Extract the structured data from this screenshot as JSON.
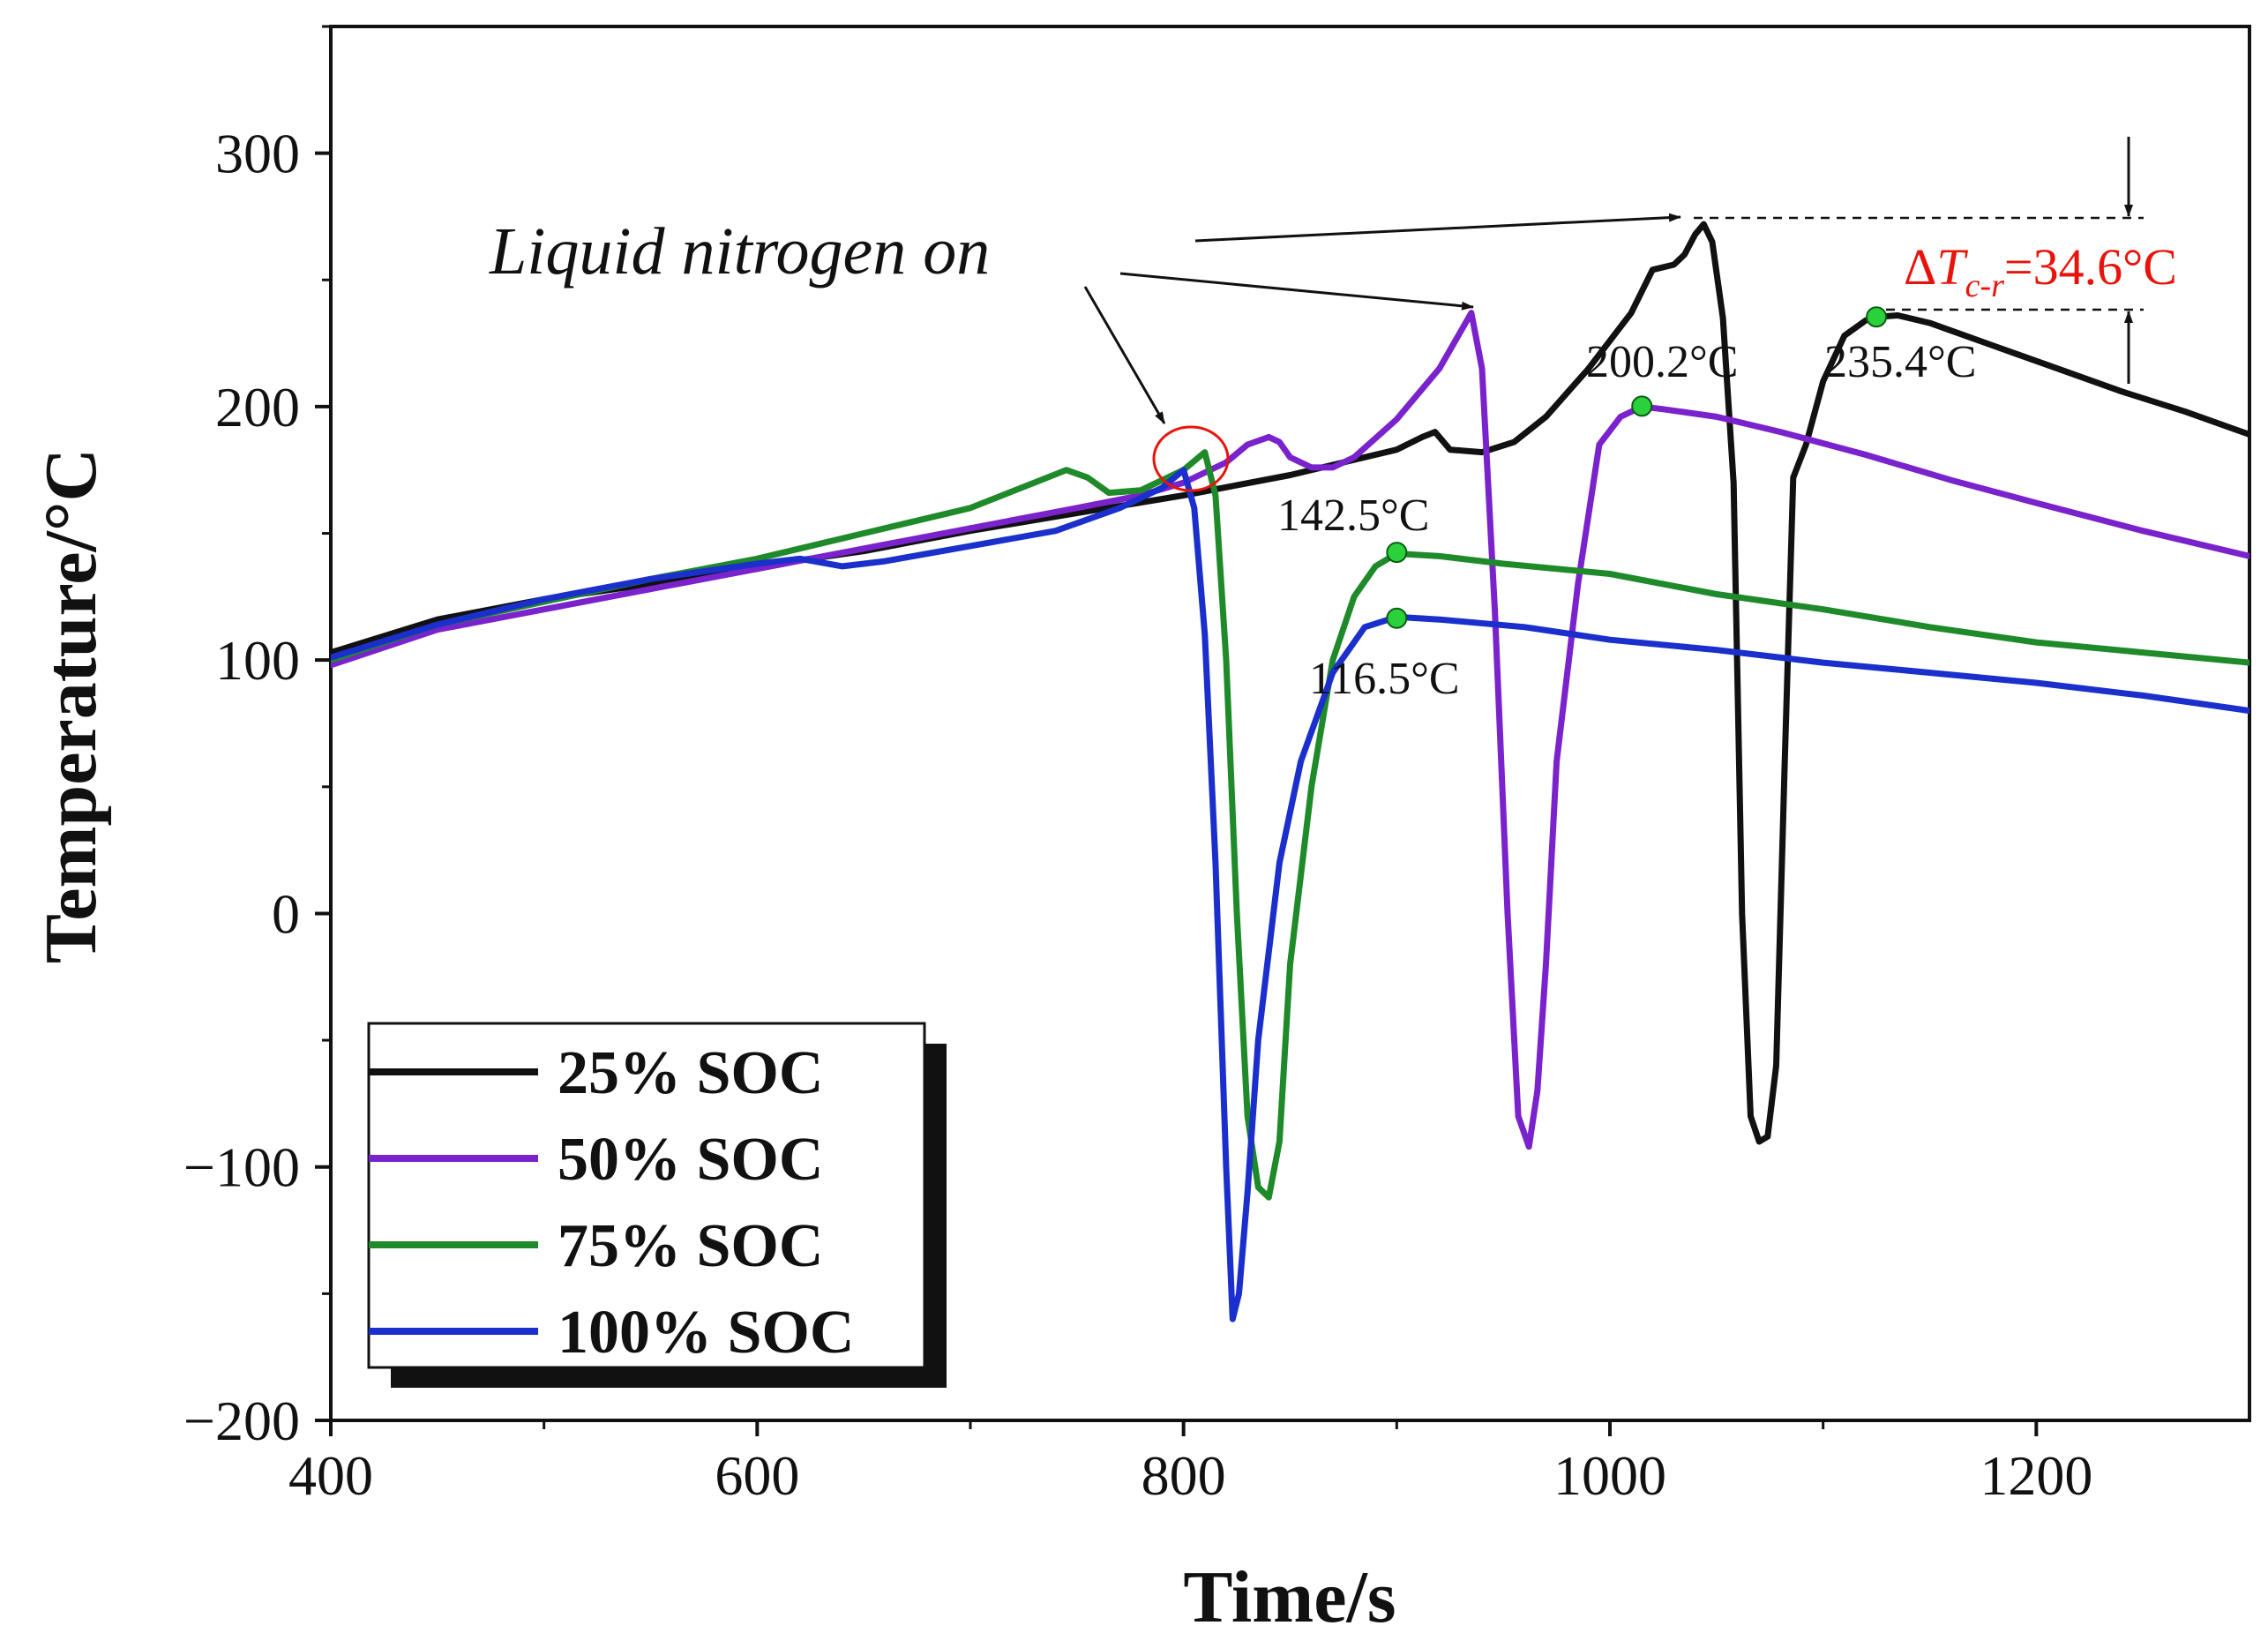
{
  "chart_data": {
    "type": "line",
    "title": "",
    "xlabel": "Time/s",
    "ylabel": "Temperature/°C",
    "xlim": [
      400,
      1300
    ],
    "ylim": [
      -200,
      350
    ],
    "xticks": [
      400,
      600,
      800,
      1000,
      1200
    ],
    "xtick_labels": [
      "400",
      "600",
      "800",
      "1000",
      "1200"
    ],
    "yticks": [
      -200,
      -100,
      0,
      100,
      200,
      300
    ],
    "ytick_labels": [
      "−200",
      "−100",
      "0",
      "100",
      "200",
      "300"
    ],
    "legend_position": "bottom-left",
    "series": [
      {
        "name": "25% SOC",
        "color": "#111111",
        "points": [
          [
            400,
            103
          ],
          [
            450,
            116
          ],
          [
            500,
            124
          ],
          [
            550,
            130
          ],
          [
            600,
            137
          ],
          [
            650,
            143
          ],
          [
            700,
            151
          ],
          [
            750,
            158
          ],
          [
            800,
            165
          ],
          [
            850,
            173
          ],
          [
            900,
            183
          ],
          [
            912,
            188
          ],
          [
            918,
            190
          ],
          [
            925,
            183
          ],
          [
            940,
            182
          ],
          [
            955,
            186
          ],
          [
            970,
            196
          ],
          [
            990,
            215
          ],
          [
            1010,
            237
          ],
          [
            1020,
            254
          ],
          [
            1030,
            256
          ],
          [
            1035,
            260
          ],
          [
            1040,
            268
          ],
          [
            1044,
            272
          ],
          [
            1048,
            265
          ],
          [
            1053,
            235
          ],
          [
            1058,
            170
          ],
          [
            1062,
            0
          ],
          [
            1066,
            -80
          ],
          [
            1070,
            -90
          ],
          [
            1074,
            -88
          ],
          [
            1078,
            -60
          ],
          [
            1082,
            60
          ],
          [
            1086,
            172
          ],
          [
            1092,
            185
          ],
          [
            1100,
            210
          ],
          [
            1110,
            228
          ],
          [
            1120,
            234
          ],
          [
            1125,
            235.4
          ],
          [
            1135,
            236
          ],
          [
            1150,
            233
          ],
          [
            1180,
            224
          ],
          [
            1210,
            215
          ],
          [
            1240,
            206
          ],
          [
            1270,
            198
          ],
          [
            1300,
            189
          ]
        ]
      },
      {
        "name": "50% SOC",
        "color": "#7a22cc",
        "points": [
          [
            400,
            98
          ],
          [
            450,
            112
          ],
          [
            500,
            120
          ],
          [
            550,
            128
          ],
          [
            600,
            136
          ],
          [
            650,
            144
          ],
          [
            700,
            152
          ],
          [
            750,
            160
          ],
          [
            780,
            165
          ],
          [
            800,
            170
          ],
          [
            820,
            178
          ],
          [
            830,
            185
          ],
          [
            840,
            188
          ],
          [
            845,
            186
          ],
          [
            850,
            180
          ],
          [
            860,
            176
          ],
          [
            870,
            176
          ],
          [
            880,
            180
          ],
          [
            900,
            195
          ],
          [
            920,
            215
          ],
          [
            935,
            237
          ],
          [
            940,
            215
          ],
          [
            946,
            120
          ],
          [
            952,
            0
          ],
          [
            957,
            -80
          ],
          [
            962,
            -92
          ],
          [
            966,
            -70
          ],
          [
            970,
            -20
          ],
          [
            975,
            60
          ],
          [
            985,
            130
          ],
          [
            995,
            185
          ],
          [
            1005,
            196
          ],
          [
            1015,
            200
          ],
          [
            1025,
            199
          ],
          [
            1050,
            196
          ],
          [
            1080,
            190
          ],
          [
            1120,
            181
          ],
          [
            1160,
            171
          ],
          [
            1200,
            162
          ],
          [
            1250,
            151
          ],
          [
            1300,
            141
          ]
        ]
      },
      {
        "name": "75% SOC",
        "color": "#1f8a2a",
        "points": [
          [
            400,
            100
          ],
          [
            450,
            114
          ],
          [
            500,
            123
          ],
          [
            550,
            132
          ],
          [
            600,
            140
          ],
          [
            650,
            150
          ],
          [
            700,
            160
          ],
          [
            730,
            170
          ],
          [
            745,
            175
          ],
          [
            755,
            172
          ],
          [
            765,
            166
          ],
          [
            780,
            167
          ],
          [
            800,
            175
          ],
          [
            810,
            182
          ],
          [
            815,
            165
          ],
          [
            820,
            100
          ],
          [
            825,
            0
          ],
          [
            830,
            -80
          ],
          [
            835,
            -108
          ],
          [
            840,
            -112
          ],
          [
            845,
            -90
          ],
          [
            850,
            -20
          ],
          [
            860,
            50
          ],
          [
            870,
            100
          ],
          [
            880,
            125
          ],
          [
            890,
            137
          ],
          [
            900,
            142
          ],
          [
            920,
            141
          ],
          [
            950,
            138
          ],
          [
            1000,
            134
          ],
          [
            1050,
            126
          ],
          [
            1100,
            120
          ],
          [
            1150,
            113
          ],
          [
            1200,
            107
          ],
          [
            1250,
            103
          ],
          [
            1300,
            99
          ]
        ]
      },
      {
        "name": "100% SOC",
        "color": "#1a2fcc",
        "points": [
          [
            400,
            101
          ],
          [
            450,
            114
          ],
          [
            500,
            124
          ],
          [
            550,
            132
          ],
          [
            600,
            138
          ],
          [
            620,
            140
          ],
          [
            640,
            137
          ],
          [
            660,
            139
          ],
          [
            700,
            145
          ],
          [
            740,
            151
          ],
          [
            770,
            160
          ],
          [
            790,
            168
          ],
          [
            800,
            175
          ],
          [
            805,
            160
          ],
          [
            810,
            110
          ],
          [
            815,
            20
          ],
          [
            820,
            -100
          ],
          [
            823,
            -160
          ],
          [
            826,
            -150
          ],
          [
            830,
            -110
          ],
          [
            835,
            -50
          ],
          [
            845,
            20
          ],
          [
            855,
            60
          ],
          [
            870,
            95
          ],
          [
            885,
            113
          ],
          [
            900,
            117
          ],
          [
            920,
            116
          ],
          [
            960,
            113
          ],
          [
            1000,
            108
          ],
          [
            1050,
            104
          ],
          [
            1100,
            99
          ],
          [
            1150,
            95
          ],
          [
            1200,
            91
          ],
          [
            1250,
            86
          ],
          [
            1300,
            80
          ]
        ]
      }
    ],
    "peak_markers": [
      {
        "x": 1125,
        "y": 235.4,
        "label": "235.4°C"
      },
      {
        "x": 1015,
        "y": 200.2,
        "label": "200.2°C"
      },
      {
        "x": 900,
        "y": 142.5,
        "label": "142.5°C"
      },
      {
        "x": 900,
        "y": 116.5,
        "label": "116.5°C"
      }
    ],
    "annotations": {
      "nitrogen_label": "Liquid nitrogen on",
      "delta_prefix": "Δ",
      "delta_symbol": "T",
      "delta_subscript": "c-r",
      "delta_value": "=34.6°C"
    }
  },
  "colors": {
    "marker_fill": "#2bd13a",
    "annotation_red": "#e8140c",
    "axis": "#111111"
  }
}
